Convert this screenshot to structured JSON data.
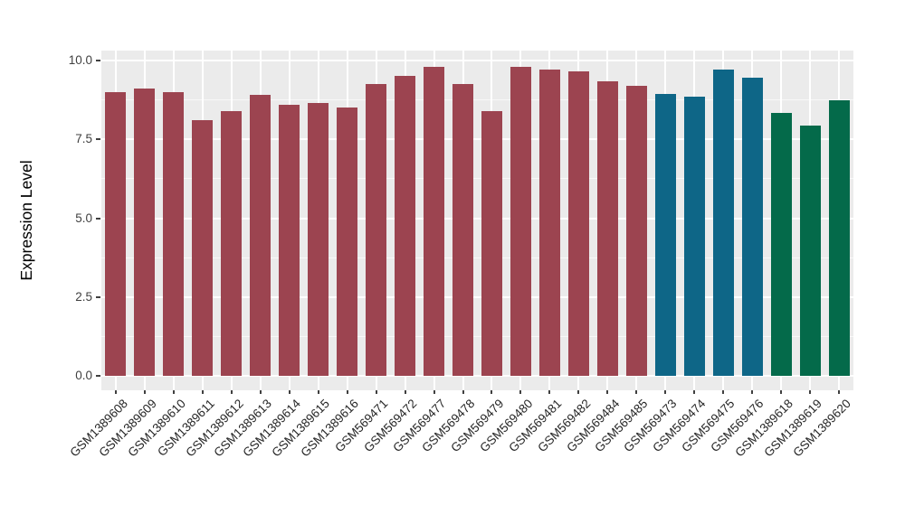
{
  "chart_data": {
    "type": "bar",
    "title": "",
    "xlabel": "",
    "ylabel": "Expression Level",
    "ylim": [
      0,
      10.3
    ],
    "yticks": [
      0,
      2.5,
      5,
      7.5,
      10
    ],
    "ytick_labels": [
      "0.0",
      "2.5",
      "5.0",
      "7.5",
      "10.0"
    ],
    "yticks_minor": [
      1.25,
      3.75,
      6.25,
      8.75
    ],
    "grid": "white major and minor horizontal lines plus white vertical lines at category centers on grey panel",
    "legend_position": "none",
    "x_label_angle_deg": 45,
    "panel_background": "#EBEBEB",
    "gridline_color": "#FFFFFF",
    "axis_text_color": "#404040",
    "categories": [
      "GSM1389608",
      "GSM1389609",
      "GSM1389610",
      "GSM1389611",
      "GSM1389612",
      "GSM1389613",
      "GSM1389614",
      "GSM1389615",
      "GSM1389616",
      "GSM569471",
      "GSM569472",
      "GSM569477",
      "GSM569478",
      "GSM569479",
      "GSM569480",
      "GSM569481",
      "GSM569482",
      "GSM569484",
      "GSM569485",
      "GSM569473",
      "GSM569474",
      "GSM569475",
      "GSM569476",
      "GSM1389618",
      "GSM1389619",
      "GSM1389620"
    ],
    "values": [
      9.0,
      9.1,
      9.0,
      8.1,
      8.4,
      8.9,
      8.6,
      8.65,
      8.5,
      9.25,
      9.5,
      9.8,
      9.25,
      8.4,
      9.8,
      9.7,
      9.65,
      9.35,
      9.2,
      8.95,
      8.85,
      9.7,
      9.45,
      8.35,
      7.95,
      8.75
    ],
    "bar_groups": [
      "maroon",
      "maroon",
      "maroon",
      "maroon",
      "maroon",
      "maroon",
      "maroon",
      "maroon",
      "maroon",
      "maroon",
      "maroon",
      "maroon",
      "maroon",
      "maroon",
      "maroon",
      "maroon",
      "maroon",
      "maroon",
      "maroon",
      "teal",
      "teal",
      "teal",
      "teal",
      "green",
      "green",
      "green"
    ],
    "palette": {
      "maroon": "#9C4450",
      "teal": "#0E6687",
      "green": "#046A4A"
    }
  }
}
